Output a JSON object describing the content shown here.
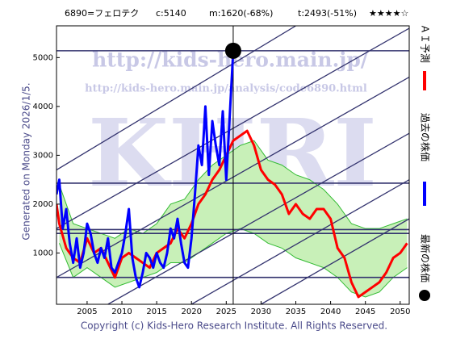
{
  "chart_data": {
    "type": "line",
    "title": {
      "code": "6890=フェロテク",
      "current": "c:5140",
      "median": "m:1620(-68%)",
      "target": "t:2493(-51%)",
      "rating": "★★★★☆"
    },
    "generated": "Generated on Monday 2026/1/5.",
    "copyright": "Copyright (c) Kids-Hero Research Institute. All Rights Reserved.",
    "watermarks": [
      "http://kids-hero.main.jp/",
      "http://kids-hero.main.jp/analysis/code6890.html",
      "KHRI"
    ],
    "xlim": [
      2000.6,
      2051.3
    ],
    "ylim": [
      -50,
      5650
    ],
    "xticks": [
      2005,
      2010,
      2015,
      2020,
      2025,
      2030,
      2035,
      2040,
      2045,
      2050
    ],
    "yticks": [
      1000,
      2000,
      3000,
      4000,
      5000
    ],
    "bands": [
      {
        "color": "#33bb33",
        "fill": "#c8f0b8",
        "x": [
          2001,
          2003,
          2005,
          2007,
          2009,
          2011,
          2013,
          2015,
          2017,
          2019,
          2021,
          2023,
          2025,
          2027,
          2029,
          2031,
          2033,
          2035,
          2037,
          2039,
          2041,
          2043,
          2045,
          2047,
          2049,
          2051
        ],
        "upper": [
          2400,
          1600,
          1500,
          1400,
          1300,
          1500,
          1400,
          1600,
          2000,
          2100,
          2500,
          2800,
          3000,
          3200,
          3300,
          2900,
          2800,
          2600,
          2500,
          2300,
          2000,
          1600,
          1500,
          1500,
          1600,
          1700
        ],
        "lower": [
          1200,
          500,
          700,
          500,
          300,
          400,
          500,
          600,
          800,
          800,
          1000,
          1200,
          1400,
          1500,
          1400,
          1200,
          1100,
          900,
          800,
          700,
          500,
          200,
          100,
          200,
          500,
          700
        ]
      }
    ],
    "hlines": [
      5140,
      2430,
      1480,
      1400,
      500
    ],
    "trend_lines": [
      [
        2000.6,
        500,
        2051.3,
        4600
      ],
      [
        2000.6,
        1500,
        2051.3,
        5600
      ],
      [
        2000.6,
        2700,
        2035,
        5650
      ],
      [
        2008,
        -50,
        2051.3,
        3450
      ],
      [
        2020,
        -50,
        2051.3,
        2500
      ],
      [
        2030,
        -50,
        2051.3,
        1700
      ]
    ],
    "current_x": 2026,
    "series": [
      {
        "name": "ＡＩ予測",
        "color": "#ff0000",
        "x": [
          2000.6,
          2001,
          2002,
          2003,
          2004,
          2005,
          2006,
          2007,
          2008,
          2009,
          2010,
          2011,
          2012,
          2013,
          2014,
          2015,
          2016,
          2017,
          2018,
          2019,
          2020,
          2021,
          2022,
          2023,
          2024,
          2025,
          2026,
          2027,
          2028,
          2029,
          2030,
          2031,
          2032,
          2033,
          2034,
          2035,
          2036,
          2037,
          2038,
          2039,
          2040,
          2041,
          2042,
          2043,
          2044,
          2045,
          2046,
          2047,
          2048,
          2049,
          2050,
          2051
        ],
        "values": [
          2000,
          1600,
          1100,
          900,
          800,
          1300,
          1000,
          1100,
          800,
          500,
          900,
          1000,
          900,
          800,
          700,
          1000,
          1100,
          1200,
          1500,
          1300,
          1600,
          2000,
          2200,
          2500,
          2700,
          3000,
          3300,
          3400,
          3500,
          3200,
          2700,
          2500,
          2400,
          2200,
          1800,
          2000,
          1800,
          1700,
          1900,
          1900,
          1700,
          1100,
          900,
          400,
          100,
          200,
          300,
          400,
          600,
          900,
          1000,
          1200
        ]
      },
      {
        "name": "過去の株価",
        "color": "#0000ff",
        "x": [
          2000.6,
          2001,
          2001.5,
          2002,
          2002.5,
          2003,
          2003.5,
          2004,
          2004.5,
          2005,
          2005.5,
          2006,
          2006.5,
          2007,
          2007.5,
          2008,
          2008.5,
          2009,
          2009.5,
          2010,
          2010.5,
          2011,
          2011.5,
          2012,
          2012.5,
          2013,
          2013.5,
          2014,
          2014.5,
          2015,
          2015.5,
          2016,
          2016.5,
          2017,
          2017.5,
          2018,
          2018.5,
          2019,
          2019.5,
          2020,
          2020.5,
          2021,
          2021.5,
          2022,
          2022.5,
          2023,
          2023.5,
          2024,
          2024.5,
          2025,
          2025.5,
          2026
        ],
        "values": [
          2200,
          2500,
          1500,
          1900,
          1200,
          800,
          1300,
          700,
          1000,
          1600,
          1400,
          1000,
          800,
          1100,
          900,
          1300,
          700,
          600,
          800,
          1000,
          1400,
          1900,
          900,
          500,
          300,
          600,
          1000,
          900,
          700,
          1000,
          800,
          700,
          1000,
          1500,
          1300,
          1700,
          1200,
          800,
          700,
          1300,
          2200,
          3200,
          2800,
          4000,
          2600,
          3700,
          3200,
          2800,
          3900,
          2500,
          3800,
          5140
        ]
      }
    ],
    "latest": {
      "name": "最新の株価",
      "color": "#000000",
      "x": 2026,
      "value": 5140
    }
  }
}
